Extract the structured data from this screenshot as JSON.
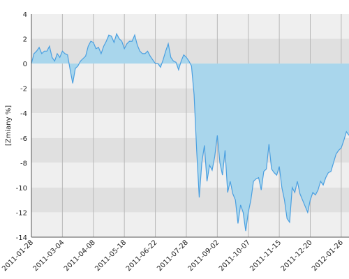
{
  "chart_data": {
    "type": "area",
    "y_label": "[Zmiany %]",
    "series": [
      {
        "color": "#4a9fe0",
        "fill": "#a9d6ec",
        "values": [
          0,
          0.8,
          1.0,
          1.3,
          0.8,
          1.0,
          1.0,
          1.4,
          0.5,
          0.2,
          0.8,
          0.5,
          1.0,
          0.8,
          0.7,
          -0.5,
          -1.6,
          -0.4,
          -0.2,
          0.2,
          0.4,
          0.6,
          1.4,
          1.8,
          1.7,
          1.2,
          1.3,
          0.8,
          1.4,
          1.8,
          2.3,
          2.2,
          1.7,
          2.4,
          2.0,
          1.8,
          1.2,
          1.6,
          1.8,
          1.8,
          2.3,
          1.5,
          1.0,
          0.8,
          0.8,
          1.0,
          0.6,
          0.3,
          0.0,
          0.0,
          -0.3,
          0.3,
          1.0,
          1.6,
          0.5,
          0.2,
          0.1,
          -0.5,
          0.2,
          0.7,
          0.5,
          0.2,
          -0.2,
          -2.5,
          -7,
          -10.8,
          -8.0,
          -6.6,
          -9.5,
          -8.2,
          -8.6,
          -7.5,
          -5.8,
          -8.0,
          -9.0,
          -7.0,
          -10.4,
          -9.5,
          -10.5,
          -11,
          -12.9,
          -11.4,
          -12,
          -13.5,
          -12,
          -11,
          -9.5,
          -9.3,
          -9.2,
          -10.2,
          -8.7,
          -8.5,
          -6.5,
          -8.5,
          -8.8,
          -9.0,
          -8.3,
          -10,
          -11,
          -12.5,
          -12.8,
          -10,
          -10.4,
          -9.5,
          -10.5,
          -11,
          -11.5,
          -12,
          -11,
          -10.4,
          -10.6,
          -10.2,
          -9.5,
          -9.8,
          -9.2,
          -8.8,
          -8.7,
          -8.0,
          -7.3,
          -7.0,
          -6.8,
          -6.2,
          -5.5,
          -5.8
        ]
      }
    ],
    "xlim": [
      0,
      123
    ],
    "xticks": [
      {
        "value": 0,
        "label": "2011-01-28"
      },
      {
        "value": 12,
        "label": "2011-03-04"
      },
      {
        "value": 24,
        "label": "2011-04-08"
      },
      {
        "value": 36,
        "label": "2011-05-18"
      },
      {
        "value": 48,
        "label": "2011-06-22"
      },
      {
        "value": 60,
        "label": "2011-07-28"
      },
      {
        "value": 72,
        "label": "2011-09-02"
      },
      {
        "value": 84,
        "label": "2011-10-07"
      },
      {
        "value": 96,
        "label": "2011-11-15"
      },
      {
        "value": 108,
        "label": "2011-12-20"
      },
      {
        "value": 120,
        "label": "2012-01-26"
      }
    ],
    "ylim": [
      -14,
      4
    ],
    "yticks": [
      4,
      2,
      0,
      -2,
      -4,
      -6,
      -8,
      -10,
      -12,
      -14
    ],
    "band_colors": [
      "#efefef",
      "#e0e0e0"
    ],
    "grid_color": "#b8b8b8"
  }
}
